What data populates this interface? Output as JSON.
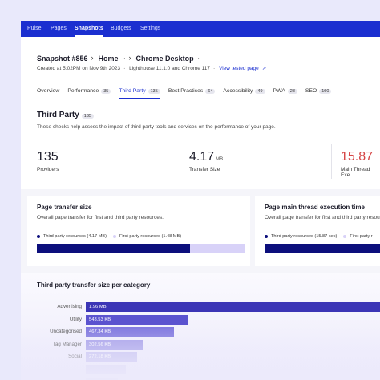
{
  "nav": [
    "Pulse",
    "Pages",
    "Snapshots",
    "Budgets",
    "Settings"
  ],
  "active_nav": 2,
  "breadcrumb": [
    "Snapshot #856",
    "Home",
    "Chrome Desktop"
  ],
  "meta": {
    "created": "Created at 5:02PM on Nov 9th 2023",
    "lighthouse": "Lighthouse 11.1.0 and Chrome 117",
    "link": "View tested page"
  },
  "tabs": [
    {
      "label": "Overview"
    },
    {
      "label": "Performance",
      "count": 35
    },
    {
      "label": "Third Party",
      "count": 135
    },
    {
      "label": "Best Practices",
      "count": 64
    },
    {
      "label": "Accessibility",
      "count": 49
    },
    {
      "label": "PWA",
      "count": 28
    },
    {
      "label": "SEO",
      "count": 100
    }
  ],
  "active_tab": 2,
  "section": {
    "title": "Third Party",
    "count": 135,
    "description": "These checks help assess the impact of third party tools and services on the performance of your page."
  },
  "stats": [
    {
      "value": 135,
      "label": "Providers"
    },
    {
      "value": 4.17,
      "unit": "MB",
      "label": "Transfer Size"
    },
    {
      "value": 15.87,
      "label": "Main Thread Exe",
      "color": "#d64545"
    }
  ],
  "cards": [
    {
      "title": "Page transfer size",
      "description": "Overall page transfer for first and third party resources.",
      "legend": [
        {
          "label": "Third party resources (4.17 MB)",
          "value": 4.17,
          "color": "#0c0f7c"
        },
        {
          "label": "First party resources (1.48 MB)",
          "value": 1.48,
          "color": "#d8d2f8"
        }
      ]
    },
    {
      "title": "Page main thread execution time",
      "description": "Overall page transfer for first and third party resources.",
      "legend": [
        {
          "label": "Third party resources (15.87 sec)",
          "value": 15.87,
          "color": "#0c0f7c"
        },
        {
          "label": "First party r",
          "color": "#d8d2f8"
        }
      ]
    }
  ],
  "category_chart": {
    "type": "bar",
    "title": "Third party transfer size per category",
    "categories": [
      "Advertising",
      "Utility",
      "Uncategorised",
      "Tag Manager",
      "Social"
    ],
    "values": [
      1960,
      543.53,
      467.34,
      302.56,
      272.18
    ],
    "value_labels": [
      "1.96 MB",
      "543.53 KB",
      "467.34 KB",
      "302.56 KB",
      "272.18 KB"
    ],
    "colors": [
      "#3b35b6",
      "#5b53cf",
      "#7f77df",
      "#a49de9",
      "#c4bff1"
    ]
  }
}
